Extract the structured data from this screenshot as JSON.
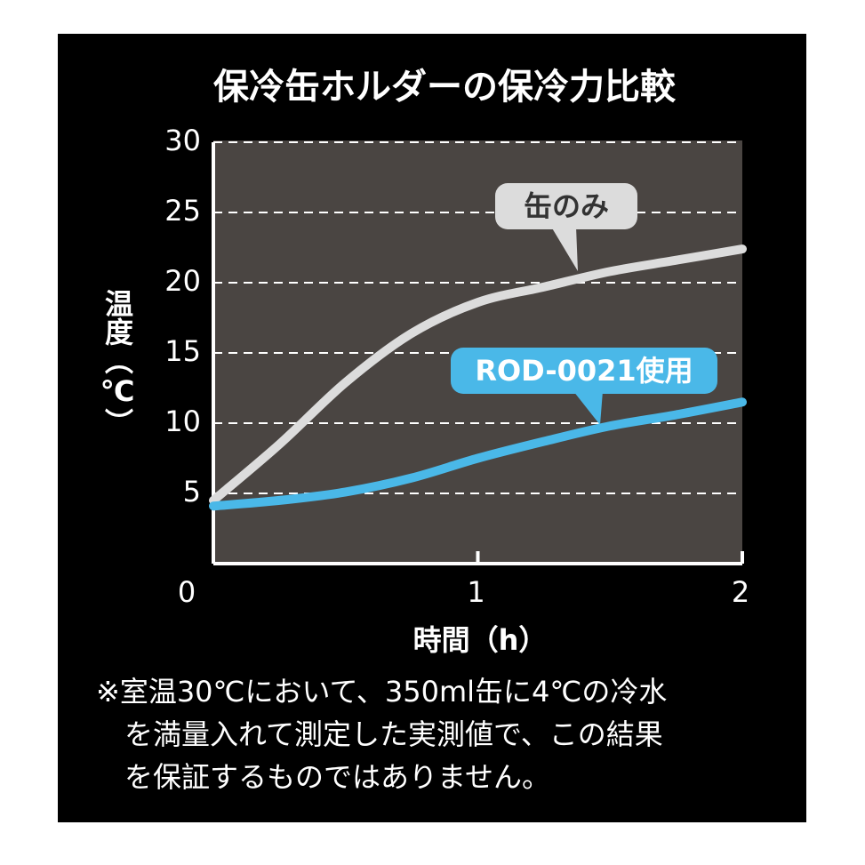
{
  "chart_data": {
    "type": "line",
    "title": "保冷缶ホルダーの保冷力比較",
    "y_label": "温度（℃）",
    "x_label": "時間（h）",
    "x": [
      0,
      0.25,
      0.5,
      0.75,
      1,
      1.25,
      1.5,
      1.75,
      2
    ],
    "series": [
      {
        "name": "缶のみ",
        "color": "#dcdcdc",
        "values": [
          4.5,
          8.5,
          12.9,
          16.4,
          18.6,
          19.7,
          20.8,
          21.6,
          22.4
        ]
      },
      {
        "name": "ROD-0021使用",
        "color": "#4ab8e8",
        "values": [
          4.1,
          4.5,
          5.1,
          6.1,
          7.5,
          8.7,
          9.8,
          10.6,
          11.5
        ]
      }
    ],
    "xlim": [
      0,
      2
    ],
    "xticks": [
      0,
      1,
      2
    ],
    "ylim": [
      0,
      30
    ],
    "yticks": [
      5,
      10,
      15,
      20,
      25,
      30
    ],
    "grid": true,
    "note": [
      "※室温30℃において、350ml缶に4℃の冷水",
      "を満量入れて測定した実測値で、この結果",
      "を保証するものではありません。"
    ]
  }
}
